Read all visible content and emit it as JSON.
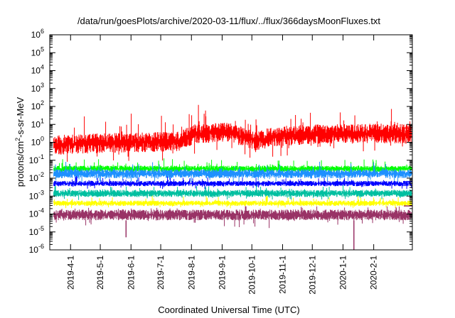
{
  "chart_data": {
    "type": "line",
    "title": "/data/run/goesPlots/archive/2020-03-11/flux/../flux/366daysMoonFluxes.txt",
    "xlabel": "Coordinated Universal Time (UTC)",
    "ylabel_parts": [
      "protons/cm",
      "2",
      "-s-sr-MeV"
    ],
    "yscale": "log",
    "ylim_exp": [
      -6,
      6
    ],
    "x_tick_labels": [
      "2019-4-1",
      "2019-5-1",
      "2019-6-1",
      "2019-7-1",
      "2019-8-1",
      "2019-9-1",
      "2019-10-1",
      "2019-11-1",
      "2019-12-1",
      "2020-1-1",
      "2020-2-1"
    ],
    "x_tick_dates": [
      "2019-04-01",
      "2019-05-01",
      "2019-06-01",
      "2019-07-01",
      "2019-08-01",
      "2019-09-01",
      "2019-10-01",
      "2019-11-01",
      "2019-12-01",
      "2020-01-01",
      "2020-02-01"
    ],
    "x_range": [
      "2019-03-11",
      "2020-03-11"
    ],
    "y_tick_base": "10",
    "y_ticks": [
      -6,
      -5,
      -4,
      -3,
      -2,
      -1,
      0,
      1,
      2,
      3,
      4,
      5,
      6
    ],
    "series": [
      {
        "color": "#ff0000",
        "band_log": [
          -0.6,
          0.5
        ],
        "spike_up": 1.2,
        "spike_down": 0.8,
        "trend": [
          [
            "2019-03-15",
            -0.1
          ],
          [
            "2019-05-01",
            0.0
          ],
          [
            "2019-06-15",
            0.05
          ],
          [
            "2019-07-20",
            0.1
          ],
          [
            "2019-08-05",
            0.55
          ],
          [
            "2019-09-10",
            0.6
          ],
          [
            "2019-10-05",
            0.1
          ],
          [
            "2019-10-20",
            0.35
          ],
          [
            "2019-12-01",
            0.5
          ],
          [
            "2020-02-01",
            0.55
          ],
          [
            "2020-03-10",
            0.5
          ]
        ]
      },
      {
        "color": "#00ff00",
        "band_log": [
          -1.65,
          -1.3
        ],
        "spike_up": 0.45,
        "spike_down": 0.2,
        "trend": [
          [
            "2019-03-15",
            0
          ],
          [
            "2020-03-10",
            0
          ]
        ]
      },
      {
        "color": "#1e90ff",
        "band_log": [
          -2.0,
          -1.5
        ],
        "spike_up": 0.45,
        "spike_down": 0.3,
        "trend": [
          [
            "2019-03-15",
            0
          ],
          [
            "2020-03-10",
            0
          ]
        ]
      },
      {
        "color": "#0000ff",
        "band_log": [
          -2.45,
          -2.15
        ],
        "spike_up": 0.3,
        "spike_down": 0.2,
        "trend": [
          [
            "2019-03-15",
            0
          ],
          [
            "2020-03-10",
            0
          ]
        ]
      },
      {
        "color": "#00bfa0",
        "band_log": [
          -3.05,
          -2.65
        ],
        "spike_up": 0.3,
        "spike_down": 0.2,
        "trend": [
          [
            "2019-03-15",
            0
          ],
          [
            "2020-03-10",
            0
          ]
        ]
      },
      {
        "color": "#ffff00",
        "band_log": [
          -3.55,
          -3.25
        ],
        "spike_up": 0.3,
        "spike_down": 0.15,
        "trend": [
          [
            "2019-03-15",
            0
          ],
          [
            "2020-03-10",
            0
          ]
        ]
      },
      {
        "color": "#993366",
        "band_log": [
          -4.35,
          -3.75
        ],
        "spike_up": 0.3,
        "spike_down": 0.5,
        "dips": [
          [
            "2019-05-27",
            -5.3
          ],
          [
            "2020-01-12",
            -6.0
          ]
        ],
        "trend": [
          [
            "2019-03-15",
            0
          ],
          [
            "2020-03-10",
            0
          ]
        ]
      }
    ],
    "right_edge_markers": [
      {
        "color": "#ff0000",
        "value_log": 0.8
      },
      {
        "color": "#00ff00",
        "value_log": -1.45
      },
      {
        "color": "#1e90ff",
        "value_log": -1.75
      },
      {
        "color": "#0000ff",
        "value_log": -2.2
      },
      {
        "color": "#00bfa0",
        "value_log": -2.85
      },
      {
        "color": "#993366",
        "value_log": -3.55
      }
    ],
    "grid": false
  }
}
